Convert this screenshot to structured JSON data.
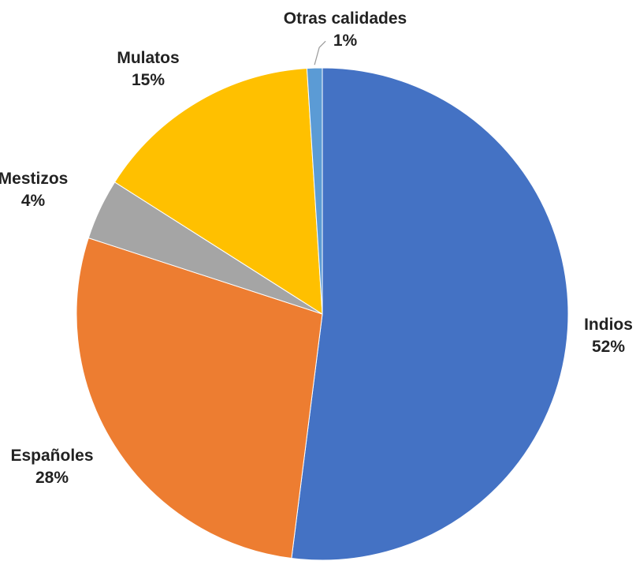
{
  "chart_data": {
    "type": "pie",
    "title": "",
    "slices": [
      {
        "label": "Indios",
        "value": 52,
        "value_label": "52%",
        "color": "#4472C4"
      },
      {
        "label": "Españoles",
        "value": 28,
        "value_label": "28%",
        "color": "#ED7D31"
      },
      {
        "label": "Mestizos",
        "value": 4,
        "value_label": "4%",
        "color": "#A5A5A5"
      },
      {
        "label": "Mulatos",
        "value": 15,
        "value_label": "15%",
        "color": "#FFC000"
      },
      {
        "label": "Otras calidades",
        "value": 1,
        "value_label": "1%",
        "color": "#5B9BD5"
      }
    ],
    "start_angle": "12 o'clock",
    "direction": "clockwise",
    "legend": "none",
    "data_labels": "outside, category name and percentage"
  }
}
